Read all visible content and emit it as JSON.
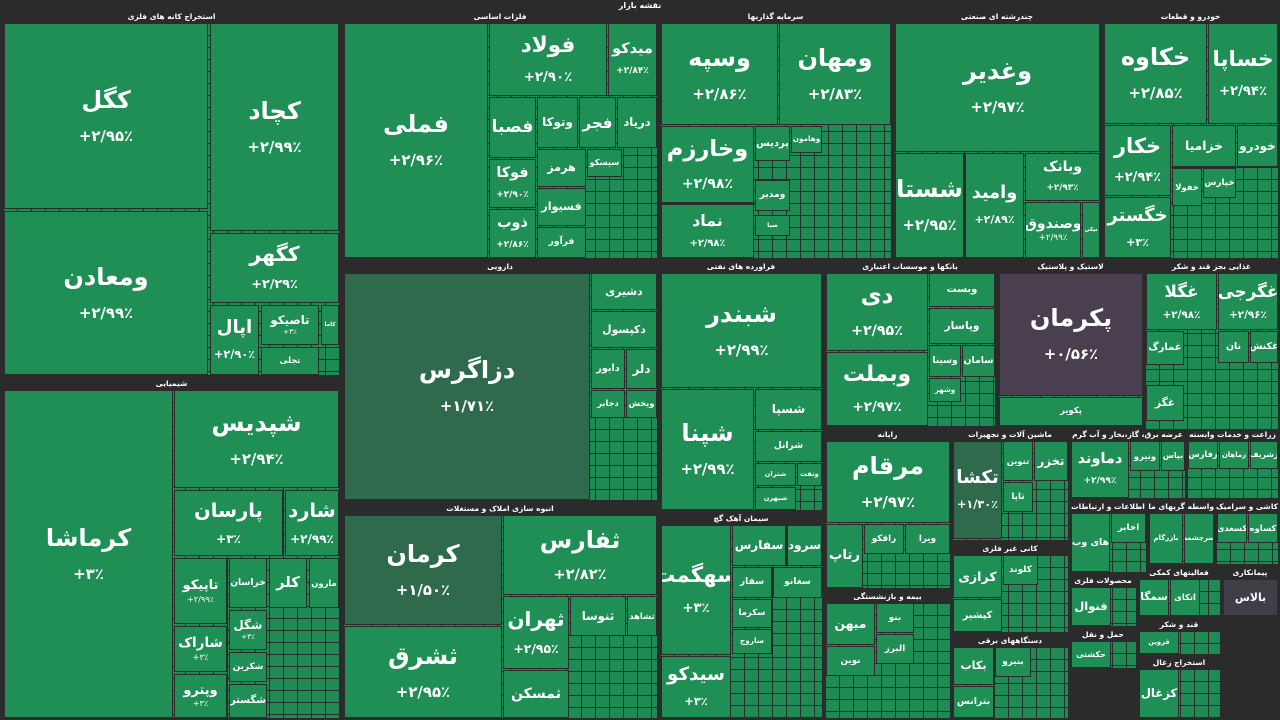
{
  "title": "نقشه بازار",
  "sectors": [
    {
      "title": "استخراج کانه های فلزی",
      "tiles": [
        {
          "name": "کگل",
          "change": "+۲/۹۵٪"
        },
        {
          "name": "کچاد",
          "change": "+۲/۹۹٪"
        },
        {
          "name": "ومعادن",
          "change": "+۲/۹۹٪"
        },
        {
          "name": "کگهر",
          "change": "+۲/۲۹٪"
        },
        {
          "name": "اپال",
          "change": "+۲/۹۰٪"
        },
        {
          "name": "تاصیکو",
          "change": "+۳٪"
        },
        {
          "name": "کاما"
        },
        {
          "name": "تجلی"
        }
      ]
    },
    {
      "title": "شیمیایی",
      "tiles": [
        {
          "name": "کرماشا",
          "change": "+۳٪"
        },
        {
          "name": "شپدیس",
          "change": "+۲/۹۴٪"
        },
        {
          "name": "پارسان",
          "change": "+۳٪"
        },
        {
          "name": "شارد",
          "change": "+۲/۹۹٪"
        },
        {
          "name": "تاپیکو",
          "change": "+۲/۹۹٪"
        },
        {
          "name": "خراسان"
        },
        {
          "name": "کلر"
        },
        {
          "name": "مارون"
        },
        {
          "name": "شاراک",
          "change": "+۳٪"
        },
        {
          "name": "شگل",
          "change": "+۳٪"
        },
        {
          "name": "وپترو",
          "change": "+۳٪"
        },
        {
          "name": "شکربن"
        },
        {
          "name": "شگستر"
        }
      ]
    },
    {
      "title": "فلزات اساسی",
      "tiles": [
        {
          "name": "فملی",
          "change": "+۲/۹۶٪"
        },
        {
          "name": "فولاد",
          "change": "+۲/۹۰٪"
        },
        {
          "name": "میدکو",
          "change": "+۲/۸۴٪"
        },
        {
          "name": "فصبا"
        },
        {
          "name": "وتوکا"
        },
        {
          "name": "فجر"
        },
        {
          "name": "دریاد"
        },
        {
          "name": "فوکا",
          "change": "+۲/۹۰٪"
        },
        {
          "name": "ذوب",
          "change": "+۲/۸۶٪"
        },
        {
          "name": "هرمز"
        },
        {
          "name": "سیسکو"
        },
        {
          "name": "فسیوار"
        },
        {
          "name": "فرآور"
        }
      ]
    },
    {
      "title": "دارویی",
      "tiles": [
        {
          "name": "دزاگرس",
          "change": "+۱/۷۱٪"
        },
        {
          "name": "دشیری"
        },
        {
          "name": "دکپسول"
        },
        {
          "name": "دابور"
        },
        {
          "name": "دلر"
        },
        {
          "name": "دجابر"
        },
        {
          "name": "وپخش"
        }
      ]
    },
    {
      "title": "انبوه سازی املاک و مستغلات",
      "tiles": [
        {
          "name": "کرمان",
          "change": "+۱/۵۰٪"
        },
        {
          "name": "ثفارس",
          "change": "+۲/۸۲٪"
        },
        {
          "name": "ثشرق",
          "change": "+۲/۹۵٪"
        },
        {
          "name": "ثهران",
          "change": "+۲/۹۵٪"
        },
        {
          "name": "ثمسکن"
        },
        {
          "name": "ثنوسا"
        },
        {
          "name": "ثشاهد"
        }
      ]
    },
    {
      "title": "سرمایه گذاریها",
      "tiles": [
        {
          "name": "وسپه",
          "change": "+۲/۸۶٪"
        },
        {
          "name": "ومهان",
          "change": "+۲/۸۳٪"
        },
        {
          "name": "وخارزم",
          "change": "+۲/۹۸٪"
        },
        {
          "name": "نماد",
          "change": "+۲/۹۸٪"
        },
        {
          "name": "پردیس"
        },
        {
          "name": "وهامون"
        },
        {
          "name": "ومدیر"
        },
        {
          "name": "صبا"
        }
      ]
    },
    {
      "title": "فراورده های نفتی",
      "tiles": [
        {
          "name": "شبندر",
          "change": "+۲/۹۹٪"
        },
        {
          "name": "شپنا",
          "change": "+۲/۹۹٪"
        },
        {
          "name": "شسپا"
        },
        {
          "name": "شرانل"
        },
        {
          "name": "شتران"
        },
        {
          "name": "شبهرن"
        },
        {
          "name": "ونفت"
        }
      ]
    },
    {
      "title": "سیمان آهک گچ",
      "tiles": [
        {
          "name": "سهگمت",
          "change": "+۳٪"
        },
        {
          "name": "سیدکو",
          "change": "+۳٪"
        },
        {
          "name": "سفارس"
        },
        {
          "name": "سرود"
        },
        {
          "name": "سفار"
        },
        {
          "name": "سغانو"
        },
        {
          "name": "سکرما"
        },
        {
          "name": "ساروج"
        }
      ]
    },
    {
      "title": "بانکها و موسسات اعتباری",
      "tiles": [
        {
          "name": "دی",
          "change": "+۲/۹۵٪"
        },
        {
          "name": "وبملت",
          "change": "+۲/۹۷٪"
        },
        {
          "name": "وبست"
        },
        {
          "name": "وپاسار"
        },
        {
          "name": "وسینا"
        },
        {
          "name": "سامان"
        },
        {
          "name": "وشهر"
        }
      ]
    },
    {
      "title": "لاستیک و پلاستیک",
      "tiles": [
        {
          "name": "پکرمان",
          "change": "+۰/۵۶٪"
        },
        {
          "name": "پکویر"
        }
      ]
    },
    {
      "title": "غذایی بجز قند و شکر",
      "tiles": [
        {
          "name": "غگلا",
          "change": "+۲/۹۸٪"
        },
        {
          "name": "غگرجی",
          "change": "+۲/۹۶٪"
        },
        {
          "name": "غمارگ"
        },
        {
          "name": "نان"
        },
        {
          "name": "غکنش"
        },
        {
          "name": "غگز"
        }
      ]
    },
    {
      "title": "خودرو و قطعات",
      "tiles": [
        {
          "name": "خکاوه",
          "change": "+۲/۸۵٪"
        },
        {
          "name": "خساپا",
          "change": "+۲/۹۴٪"
        },
        {
          "name": "خکار",
          "change": "+۲/۹۴٪"
        },
        {
          "name": "خگستر",
          "change": "+۳٪"
        },
        {
          "name": "خزامیا"
        },
        {
          "name": "خودرو"
        },
        {
          "name": "خفولا"
        },
        {
          "name": "خپارس"
        }
      ]
    },
    {
      "title": "چندرشته ای صنعتی",
      "tiles": [
        {
          "name": "وغدیر",
          "change": "+۲/۹۷٪"
        },
        {
          "name": "شستا",
          "change": "+۲/۹۵٪"
        },
        {
          "name": "وامید",
          "change": "+۲/۸۹٪"
        },
        {
          "name": "وبانک",
          "change": "+۲/۹۳٪"
        },
        {
          "name": "وصندوق",
          "change": "+۲/۹۹٪"
        },
        {
          "name": "نیکی"
        }
      ]
    },
    {
      "title": "رایانه",
      "tiles": [
        {
          "name": "مرقام",
          "change": "+۲/۹۷٪"
        },
        {
          "name": "رتاپ"
        },
        {
          "name": "رافکو"
        },
        {
          "name": "ویرا"
        }
      ]
    },
    {
      "title": "ماشین آلات و تجهیزات",
      "tiles": [
        {
          "name": "تکشا",
          "change": "+۱/۳۰٪"
        },
        {
          "name": "تنوین"
        },
        {
          "name": "تخزر"
        },
        {
          "name": "تاپا"
        }
      ]
    },
    {
      "title": "عرضه برق، گاز،بخار و آب گرم",
      "tiles": [
        {
          "name": "دماوند",
          "change": "+۲/۹۹٪"
        },
        {
          "name": "ونیرو"
        },
        {
          "name": "بپاس"
        }
      ]
    },
    {
      "title": "زراعت و خدمات وابسته",
      "tiles": [
        {
          "name": "زفارس"
        },
        {
          "name": "زماهان"
        },
        {
          "name": "زشریف"
        }
      ]
    },
    {
      "title": "اطلاعات و ارتباطات",
      "tiles": [
        {
          "name": "های وب"
        },
        {
          "name": "اخابر"
        }
      ]
    },
    {
      "title": "واسطه گریهای مالی و",
      "tiles": [
        {
          "name": "بازرگام"
        },
        {
          "name": "سرچشمه"
        }
      ]
    },
    {
      "title": "کاشی و سرامیک",
      "tiles": [
        {
          "name": "کسعدی"
        },
        {
          "name": "کساوه"
        }
      ]
    },
    {
      "title": "کانی غیر فلزی",
      "tiles": [
        {
          "name": "کرازی"
        },
        {
          "name": "کلوند"
        },
        {
          "name": "کپشیر"
        }
      ]
    },
    {
      "title": "بیمه و بازنشستگی",
      "tiles": [
        {
          "name": "میهن"
        },
        {
          "name": "بنو"
        },
        {
          "name": "نوین"
        },
        {
          "name": "البرز"
        }
      ]
    },
    {
      "title": "دستگاههای برقی",
      "tiles": [
        {
          "name": "بکاب"
        },
        {
          "name": "بنیرو"
        },
        {
          "name": "بترانس"
        }
      ]
    },
    {
      "title": "محصولات فلزی",
      "tiles": [
        {
          "name": "فنوال"
        }
      ]
    },
    {
      "title": "فعالیتهای کمکی",
      "tiles": [
        {
          "name": "سمگا"
        },
        {
          "name": "اتکای"
        }
      ]
    },
    {
      "title": "پیمانکاری",
      "tiles": [
        {
          "name": "بالاس"
        }
      ]
    },
    {
      "title": "حمل و نقل",
      "tiles": [
        {
          "name": "حکشتی"
        }
      ]
    },
    {
      "title": "قند و شکر",
      "tiles": [
        {
          "name": "قزوین"
        }
      ]
    },
    {
      "title": "استخراج زغال",
      "tiles": [
        {
          "name": "کزغال"
        }
      ]
    }
  ]
}
